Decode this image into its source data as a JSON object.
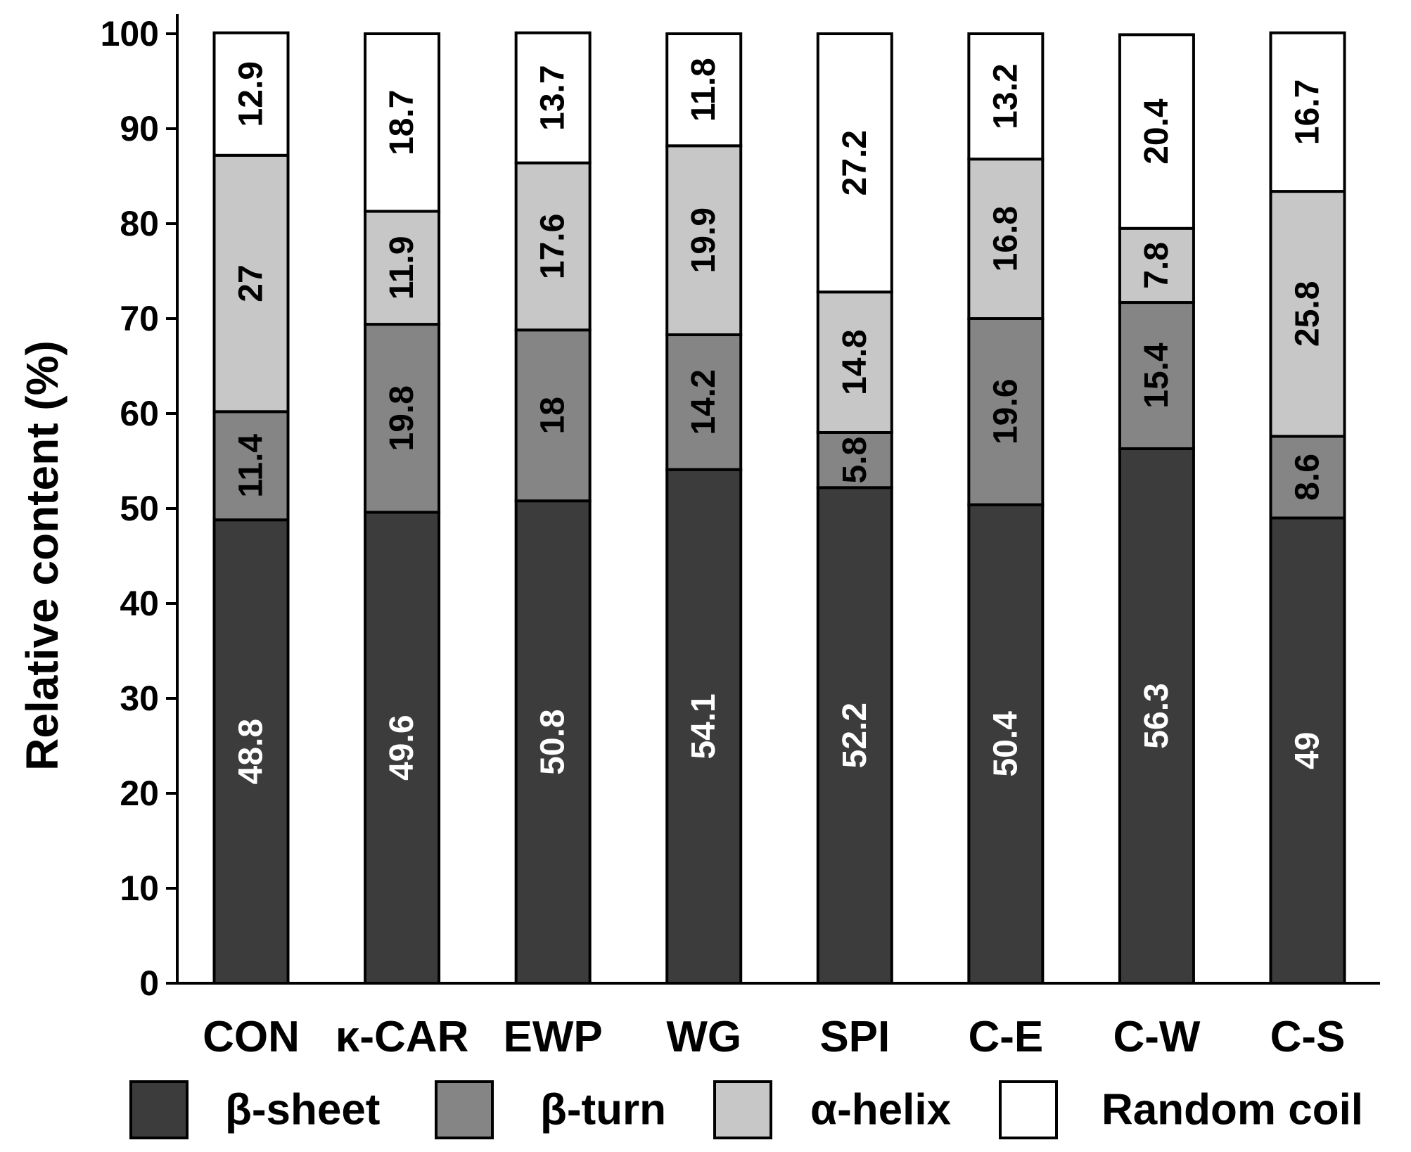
{
  "chart_data": {
    "type": "bar",
    "stacked": true,
    "ylabel": "Relative content (%)",
    "xlabel": "",
    "ylim": [
      0,
      100
    ],
    "yticks": [
      0,
      10,
      20,
      30,
      40,
      50,
      60,
      70,
      80,
      90,
      100
    ],
    "categories": [
      "CON",
      "κ-CAR",
      "EWP",
      "WG",
      "SPI",
      "C-E",
      "C-W",
      "C-S"
    ],
    "series": [
      {
        "name": "β-sheet",
        "color": "#3c3c3c",
        "label_color": "#ffffff",
        "values": [
          48.8,
          49.6,
          50.8,
          54.1,
          52.2,
          50.4,
          56.3,
          49
        ]
      },
      {
        "name": "β-turn",
        "color": "#858585",
        "label_color": "#000000",
        "values": [
          11.4,
          19.8,
          18,
          14.2,
          5.8,
          19.6,
          15.4,
          8.6
        ]
      },
      {
        "name": "α-helix",
        "color": "#c7c7c7",
        "label_color": "#000000",
        "values": [
          27,
          11.9,
          17.6,
          19.9,
          14.8,
          16.8,
          7.8,
          25.8
        ]
      },
      {
        "name": "Random coil",
        "color": "#ffffff",
        "label_color": "#000000",
        "values": [
          12.9,
          18.7,
          13.7,
          11.8,
          27.2,
          13.2,
          20.4,
          16.7
        ]
      }
    ],
    "legend": "bottom",
    "grid": false
  }
}
